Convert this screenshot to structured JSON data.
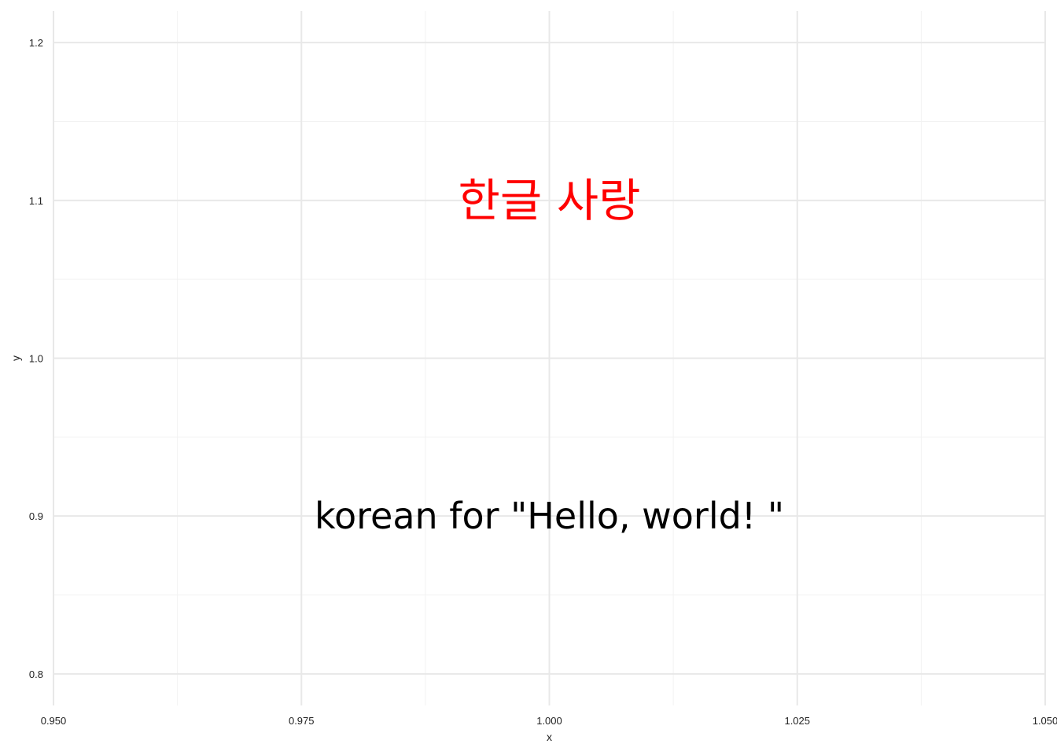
{
  "chart_data": {
    "type": "scatter",
    "title": "",
    "xlabel": "x",
    "ylabel": "y",
    "xlim": [
      0.95,
      1.05
    ],
    "ylim": [
      0.78,
      1.22
    ],
    "x_ticks": [
      0.95,
      0.975,
      1.0,
      1.025,
      1.05
    ],
    "x_tick_labels": [
      "0.950",
      "0.975",
      "1.000",
      "1.025",
      "1.050"
    ],
    "y_ticks": [
      0.8,
      0.9,
      1.0,
      1.1,
      1.2
    ],
    "y_tick_labels": [
      "0.8",
      "0.9",
      "1.0",
      "1.1",
      "1.2"
    ],
    "x_minor_ticks": [
      0.9625,
      0.9875,
      1.0125,
      1.0375
    ],
    "y_minor_ticks": [
      0.85,
      0.95,
      1.05,
      1.15
    ],
    "grid": true,
    "annotations": [
      {
        "text": "한글 사랑",
        "x": 1.0,
        "y": 1.1,
        "color": "#ff0000"
      },
      {
        "text": "korean for \"Hello, world! \"",
        "x": 1.0,
        "y": 0.9,
        "color": "#000000"
      }
    ]
  },
  "colors": {
    "grid_major": "#e8e8e8",
    "grid_minor": "#f2f2f2",
    "text": "#222222"
  }
}
